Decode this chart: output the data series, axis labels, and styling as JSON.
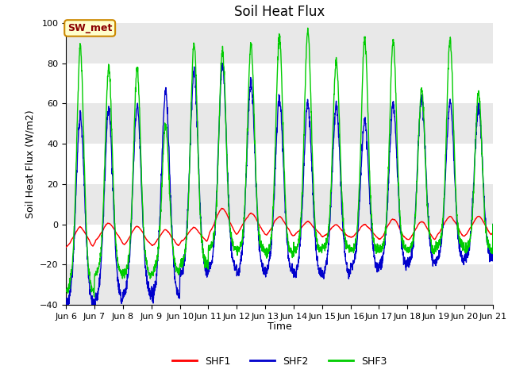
{
  "title": "Soil Heat Flux",
  "ylabel": "Soil Heat Flux (W/m2)",
  "xlabel": "Time",
  "xlim": [
    6,
    21
  ],
  "ylim": [
    -40,
    100
  ],
  "yticks": [
    -40,
    -20,
    0,
    20,
    40,
    60,
    80,
    100
  ],
  "xtick_positions": [
    6,
    7,
    8,
    9,
    10,
    11,
    12,
    13,
    14,
    15,
    16,
    17,
    18,
    19,
    20,
    21
  ],
  "xtick_labels": [
    "Jun 6",
    "Jun 7",
    "Jun 8",
    "Jun 9",
    "Jun 10",
    "Jun 11",
    "Jun 12",
    "Jun 13",
    "Jun 14",
    "Jun 15",
    "Jun 16",
    "Jun 17",
    "Jun 18",
    "Jun 19",
    "Jun 20",
    "Jun 21"
  ],
  "colors": {
    "SHF1": "#ff0000",
    "SHF2": "#0000cc",
    "SHF3": "#00cc00"
  },
  "annotation_text": "SW_met",
  "annotation_bg": "#ffffcc",
  "annotation_border": "#cc8800",
  "band_color": "#e8e8e8",
  "plot_bg": "#ffffff",
  "line_width": 1.0,
  "title_fontsize": 12,
  "axis_fontsize": 9,
  "tick_fontsize": 8
}
